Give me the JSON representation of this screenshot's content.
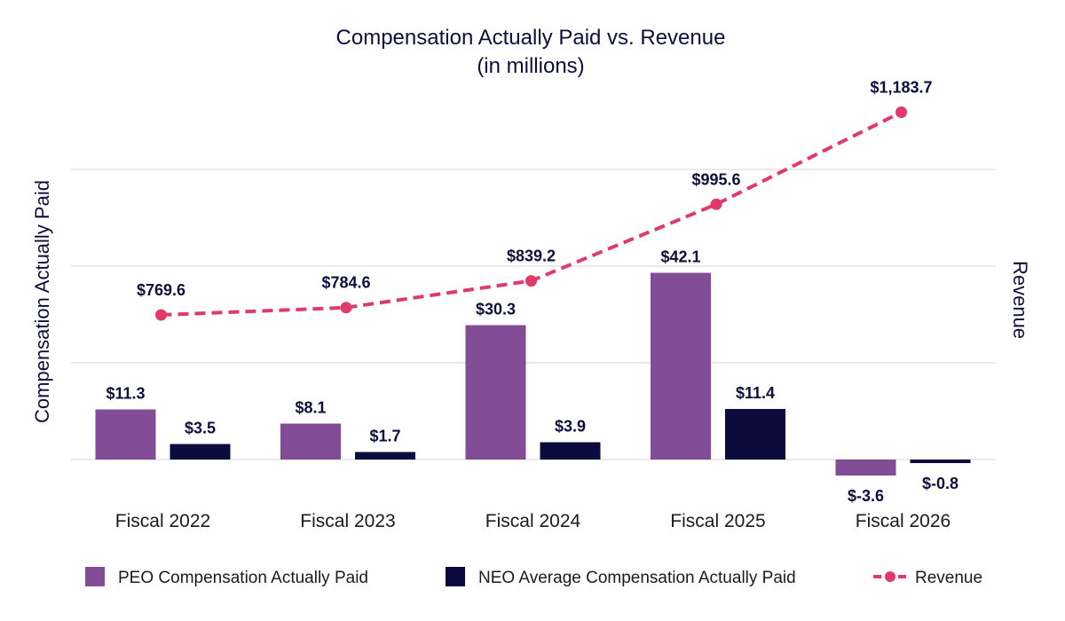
{
  "chart_data": {
    "type": "bar",
    "title": "Compensation Actually Paid vs. Revenue",
    "subtitle": "(in millions)",
    "ylabel": "Compensation Actually Paid",
    "y2label": "Revenue",
    "categories": [
      "Fiscal 2022",
      "Fiscal 2023",
      "Fiscal 2024",
      "Fiscal 2025",
      "Fiscal 2026"
    ],
    "grid": true,
    "ylim": [
      -10,
      65
    ],
    "y2lim": [
      350,
      1300
    ],
    "legend_position": "bottom",
    "series": [
      {
        "name": "PEO Compensation Actually Paid",
        "type": "bar",
        "axis": "left",
        "color": "#824c97",
        "values": [
          11.3,
          8.1,
          30.3,
          42.1,
          -3.6
        ],
        "labels": [
          "$11.3",
          "$8.1",
          "$30.3",
          "$42.1",
          "$-3.6"
        ]
      },
      {
        "name": "NEO Average Compensation Actually Paid",
        "type": "bar",
        "axis": "left",
        "color": "#0b0c3d",
        "values": [
          3.5,
          1.7,
          3.9,
          11.4,
          -0.8
        ],
        "labels": [
          "$3.5",
          "$1.7",
          "$3.9",
          "$11.4",
          "$-0.8"
        ]
      },
      {
        "name": "Revenue",
        "type": "line",
        "axis": "right",
        "style": "dashed",
        "color": "#e03a6b",
        "values": [
          769.6,
          784.6,
          839.2,
          995.6,
          1183.7
        ],
        "labels": [
          "$769.6",
          "$784.6",
          "$839.2",
          "$995.6",
          "$1,183.7"
        ]
      }
    ]
  }
}
